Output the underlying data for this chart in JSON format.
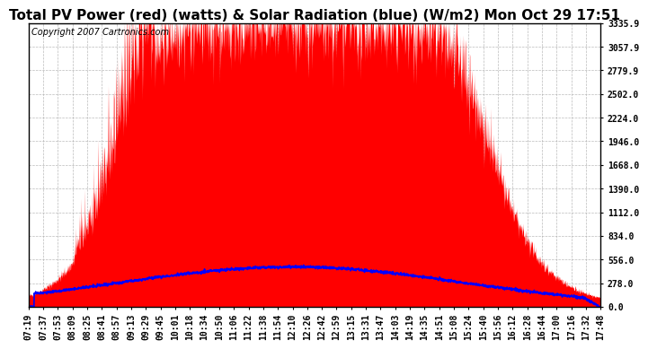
{
  "title": "Total PV Power (red) (watts) & Solar Radiation (blue) (W/m2) Mon Oct 29 17:51",
  "copyright": "Copyright 2007 Cartronics.com",
  "bg_color": "#ffffff",
  "plot_bg_color": "#ffffff",
  "red_color": "#ff0000",
  "blue_color": "#0000ff",
  "grid_color": "#aaaaaa",
  "yticks": [
    0.0,
    278.0,
    556.0,
    834.0,
    1112.0,
    1390.0,
    1668.0,
    1946.0,
    2224.0,
    2502.0,
    2779.9,
    3057.9,
    3335.9
  ],
  "ymax": 3335.9,
  "xtick_labels": [
    "07:19",
    "07:37",
    "07:53",
    "08:09",
    "08:25",
    "08:41",
    "08:57",
    "09:13",
    "09:29",
    "09:45",
    "10:01",
    "10:18",
    "10:34",
    "10:50",
    "11:06",
    "11:22",
    "11:38",
    "11:54",
    "12:10",
    "12:26",
    "12:42",
    "12:59",
    "13:15",
    "13:31",
    "13:47",
    "14:03",
    "14:19",
    "14:35",
    "14:51",
    "15:08",
    "15:24",
    "15:40",
    "15:56",
    "16:12",
    "16:28",
    "16:44",
    "17:00",
    "17:16",
    "17:32",
    "17:48"
  ],
  "title_fontsize": 11,
  "tick_fontsize": 7,
  "copyright_fontsize": 7,
  "solar_peak": 470,
  "pv_peak": 3335.9
}
